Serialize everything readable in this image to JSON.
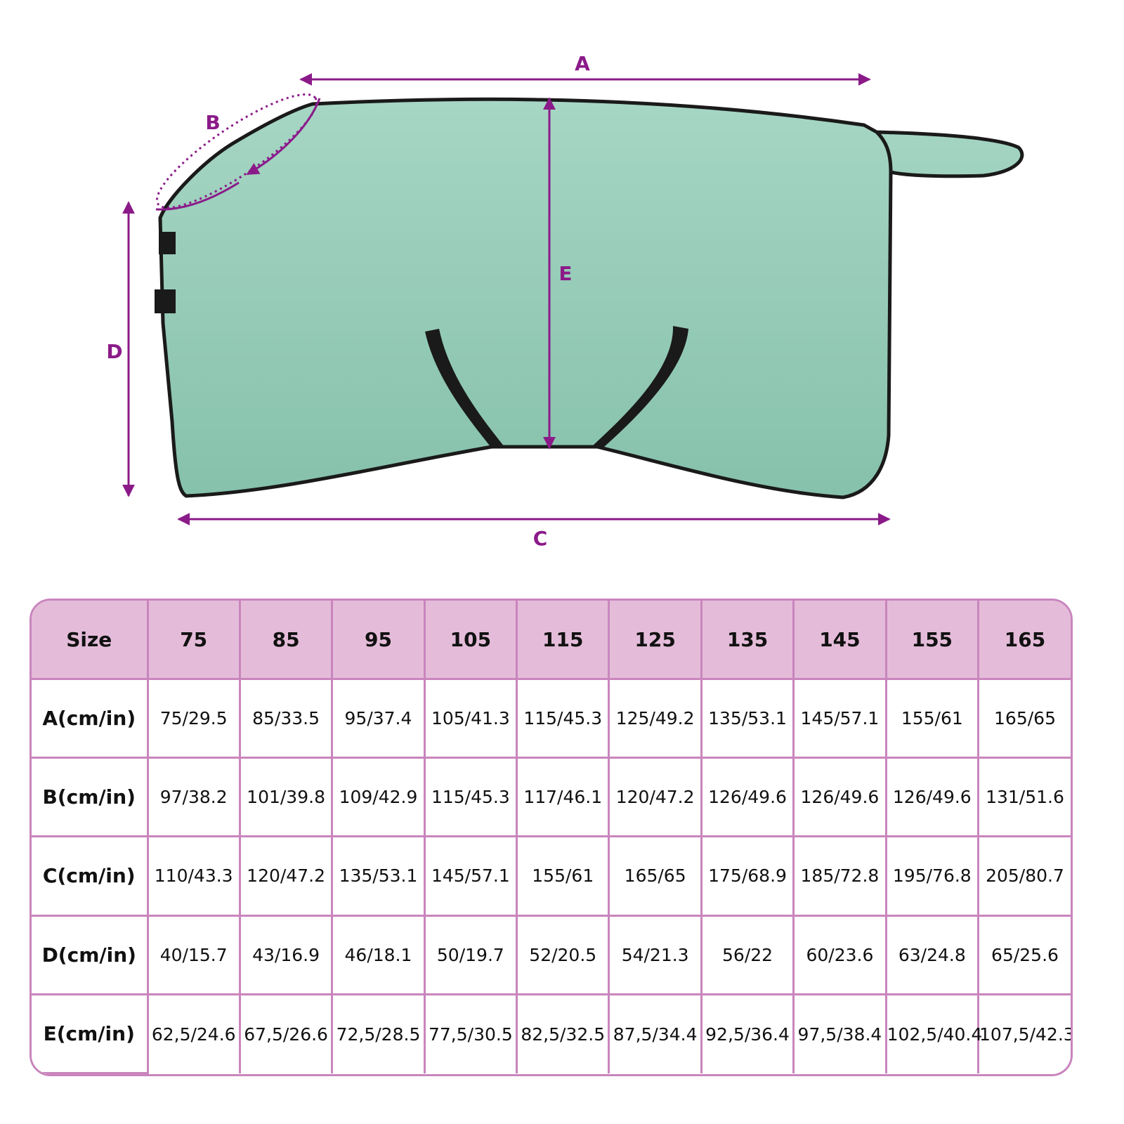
{
  "diagram": {
    "labels": {
      "a": "A",
      "b": "B",
      "c": "C",
      "d": "D",
      "e": "E"
    },
    "colors": {
      "dimension": "#8b1a89",
      "blanket": "#8cc5b0",
      "trim": "#1a1a1a"
    }
  },
  "table": {
    "header": [
      "Size",
      "75",
      "85",
      "95",
      "105",
      "115",
      "125",
      "135",
      "145",
      "155",
      "165"
    ],
    "rows": [
      {
        "label": "A(cm/in)",
        "values": [
          "75/29.5",
          "85/33.5",
          "95/37.4",
          "105/41.3",
          "115/45.3",
          "125/49.2",
          "135/53.1",
          "145/57.1",
          "155/61",
          "165/65"
        ]
      },
      {
        "label": "B(cm/in)",
        "values": [
          "97/38.2",
          "101/39.8",
          "109/42.9",
          "115/45.3",
          "117/46.1",
          "120/47.2",
          "126/49.6",
          "126/49.6",
          "126/49.6",
          "131/51.6"
        ]
      },
      {
        "label": "C(cm/in)",
        "values": [
          "110/43.3",
          "120/47.2",
          "135/53.1",
          "145/57.1",
          "155/61",
          "165/65",
          "175/68.9",
          "185/72.8",
          "195/76.8",
          "205/80.7"
        ]
      },
      {
        "label": "D(cm/in)",
        "values": [
          "40/15.7",
          "43/16.9",
          "46/18.1",
          "50/19.7",
          "52/20.5",
          "54/21.3",
          "56/22",
          "60/23.6",
          "63/24.8",
          "65/25.6"
        ]
      },
      {
        "label": "E(cm/in)",
        "values": [
          "62,5/24.6",
          "67,5/26.6",
          "72,5/28.5",
          "77,5/30.5",
          "82,5/32.5",
          "87,5/34.4",
          "92,5/36.4",
          "97,5/38.4",
          "102,5/40.4",
          "107,5/42.3"
        ]
      }
    ],
    "colors": {
      "header_bg": "#e4bcd9",
      "border": "#c985bd"
    }
  }
}
